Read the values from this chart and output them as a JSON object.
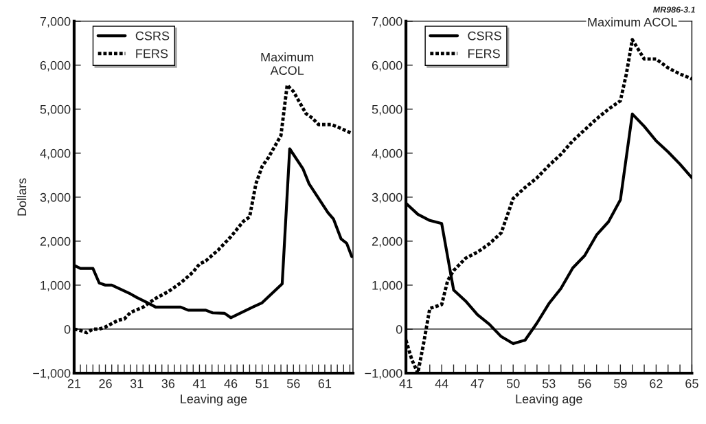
{
  "chart_data": [
    {
      "type": "line",
      "ylabel": "Dollars",
      "xlabel": "Leaving age",
      "xlim": [
        21,
        65.5
      ],
      "ylim": [
        -1000,
        7000
      ],
      "xticks": [
        21,
        {
          "value": 22,
          "label": null
        },
        {
          "value": 23,
          "label": null
        },
        {
          "value": 24,
          "label": null
        },
        {
          "value": 25,
          "label": null
        },
        26,
        {
          "value": 27,
          "label": null
        },
        {
          "value": 28,
          "label": null
        },
        {
          "value": 29,
          "label": null
        },
        {
          "value": 30,
          "label": null
        },
        31,
        {
          "value": 32,
          "label": null
        },
        {
          "value": 33,
          "label": null
        },
        {
          "value": 34,
          "label": null
        },
        {
          "value": 35,
          "label": null
        },
        36,
        {
          "value": 37,
          "label": null
        },
        {
          "value": 38,
          "label": null
        },
        {
          "value": 39,
          "label": null
        },
        {
          "value": 40,
          "label": null
        },
        41,
        {
          "value": 42,
          "label": null
        },
        {
          "value": 43,
          "label": null
        },
        {
          "value": 44,
          "label": null
        },
        {
          "value": 45,
          "label": null
        },
        46,
        {
          "value": 47,
          "label": null
        },
        {
          "value": 48,
          "label": null
        },
        {
          "value": 49,
          "label": null
        },
        {
          "value": 50,
          "label": null
        },
        51,
        {
          "value": 52,
          "label": null
        },
        {
          "value": 53,
          "label": null
        },
        {
          "value": 54,
          "label": null
        },
        {
          "value": 55,
          "label": null
        },
        56,
        {
          "value": 57,
          "label": null
        },
        {
          "value": 58,
          "label": null
        },
        {
          "value": 59,
          "label": null
        },
        {
          "value": 60,
          "label": null
        },
        61,
        {
          "value": 62,
          "label": null
        },
        {
          "value": 63,
          "label": null
        },
        {
          "value": 64,
          "label": null
        },
        {
          "value": 65,
          "label": null
        }
      ],
      "yticks": [
        {
          "value": -1000,
          "label": "−1,000"
        },
        0,
        {
          "value": 1000,
          "label": "1,000"
        },
        {
          "value": 2000,
          "label": "2,000"
        },
        {
          "value": 3000,
          "label": "3,000"
        },
        {
          "value": 4000,
          "label": "4,000"
        },
        {
          "value": 5000,
          "label": "5,000"
        },
        {
          "value": 6000,
          "label": "6,000"
        },
        {
          "value": 7000,
          "label": "7,000"
        }
      ],
      "legend": "top left",
      "grid": false,
      "ref_lines": [
        {
          "axis": "y",
          "value": 0,
          "color": "#000000",
          "line_style": "solid"
        }
      ],
      "annotations": [
        {
          "text": "Maximum\nACOL",
          "x": 55,
          "y": 5550
        }
      ],
      "series": [
        {
          "name": "CSRS",
          "color": "#000000",
          "line_style": "solid",
          "x": [
            21,
            22,
            24,
            25,
            26,
            27,
            30,
            31,
            33,
            34,
            38,
            39.2,
            42,
            43.1,
            45,
            46,
            49.5,
            51,
            54.2,
            55.4,
            57.5,
            58.5,
            61.5,
            62.4,
            63.6,
            64.5,
            65.3
          ],
          "values": [
            1450,
            1380,
            1380,
            1050,
            1000,
            1000,
            800,
            720,
            580,
            500,
            500,
            430,
            430,
            370,
            360,
            260,
            500,
            600,
            1030,
            4100,
            3650,
            3300,
            2650,
            2500,
            2050,
            1950,
            1650
          ]
        },
        {
          "name": "FERS",
          "color": "#000000",
          "line_style": "dotted",
          "x": [
            21,
            22,
            23,
            24,
            25,
            26,
            28,
            29,
            30,
            32,
            34,
            36,
            38,
            40,
            41,
            42,
            44,
            46,
            48,
            49,
            50,
            51,
            52,
            53,
            54,
            55,
            56,
            57,
            58,
            59,
            60,
            61,
            62,
            63,
            65.3
          ],
          "values": [
            0,
            -30,
            -80,
            0,
            0,
            50,
            200,
            230,
            380,
            500,
            700,
            850,
            1050,
            1300,
            1480,
            1550,
            1800,
            2100,
            2450,
            2550,
            3300,
            3700,
            3900,
            4150,
            4400,
            5550,
            5400,
            5150,
            4900,
            4800,
            4650,
            4650,
            4650,
            4600,
            4450
          ]
        }
      ]
    },
    {
      "type": "line",
      "xlabel": "Leaving age",
      "xlim": [
        41,
        65
      ],
      "ylim": [
        -1000,
        7000
      ],
      "xticks": [
        41,
        {
          "value": 42,
          "label": null
        },
        {
          "value": 43,
          "label": null
        },
        44,
        {
          "value": 45,
          "label": null
        },
        {
          "value": 46,
          "label": null
        },
        47,
        {
          "value": 48,
          "label": null
        },
        {
          "value": 49,
          "label": null
        },
        50,
        {
          "value": 51,
          "label": null
        },
        {
          "value": 52,
          "label": null
        },
        53,
        {
          "value": 54,
          "label": null
        },
        {
          "value": 55,
          "label": null
        },
        56,
        {
          "value": 57,
          "label": null
        },
        {
          "value": 58,
          "label": null
        },
        59,
        {
          "value": 60,
          "label": null
        },
        {
          "value": 61,
          "label": null
        },
        62,
        {
          "value": 63,
          "label": null
        },
        {
          "value": 64,
          "label": null
        },
        65
      ],
      "yticks": [
        {
          "value": -1000,
          "label": "−1,000"
        },
        0,
        {
          "value": 1000,
          "label": "1,000"
        },
        {
          "value": 2000,
          "label": "2,000"
        },
        {
          "value": 3000,
          "label": "3,000"
        },
        {
          "value": 4000,
          "label": "4,000"
        },
        {
          "value": 5000,
          "label": "5,000"
        },
        {
          "value": 6000,
          "label": "6,000"
        },
        {
          "value": 7000,
          "label": "7,000"
        }
      ],
      "legend": "top left",
      "grid": false,
      "ref_lines": [
        {
          "axis": "y",
          "value": 0,
          "color": "#000000",
          "line_style": "solid"
        }
      ],
      "annotations": [
        {
          "text": "Maximum ACOL",
          "x": 60,
          "y": 6650
        },
        "MR986-3.1"
      ],
      "series": [
        {
          "name": "CSRS",
          "color": "#000000",
          "line_style": "solid",
          "x": [
            41,
            42,
            43,
            44,
            45,
            46,
            47,
            48,
            49,
            50,
            51,
            52,
            53,
            54,
            55,
            56,
            57,
            58,
            59,
            60,
            61,
            62,
            63,
            64,
            65
          ],
          "values": [
            2860,
            2610,
            2470,
            2400,
            890,
            640,
            330,
            110,
            -170,
            -330,
            -250,
            140,
            580,
            920,
            1390,
            1670,
            2140,
            2440,
            2940,
            4890,
            4610,
            4280,
            4030,
            3750,
            3440
          ]
        },
        {
          "name": "FERS",
          "color": "#000000",
          "line_style": "dotted",
          "x": [
            41,
            41.5,
            42,
            42.5,
            43,
            44,
            44.5,
            45,
            46,
            47,
            48,
            49,
            50,
            51,
            52,
            53,
            54,
            55,
            56,
            57,
            58,
            59,
            59.5,
            60,
            61,
            62,
            63,
            64,
            65
          ],
          "values": [
            -250,
            -700,
            -1000,
            -300,
            470,
            560,
            1100,
            1330,
            1610,
            1750,
            1940,
            2190,
            2970,
            3220,
            3440,
            3720,
            3970,
            4280,
            4530,
            4780,
            5000,
            5190,
            5800,
            6580,
            6140,
            6140,
            5940,
            5800,
            5690
          ]
        }
      ]
    }
  ]
}
